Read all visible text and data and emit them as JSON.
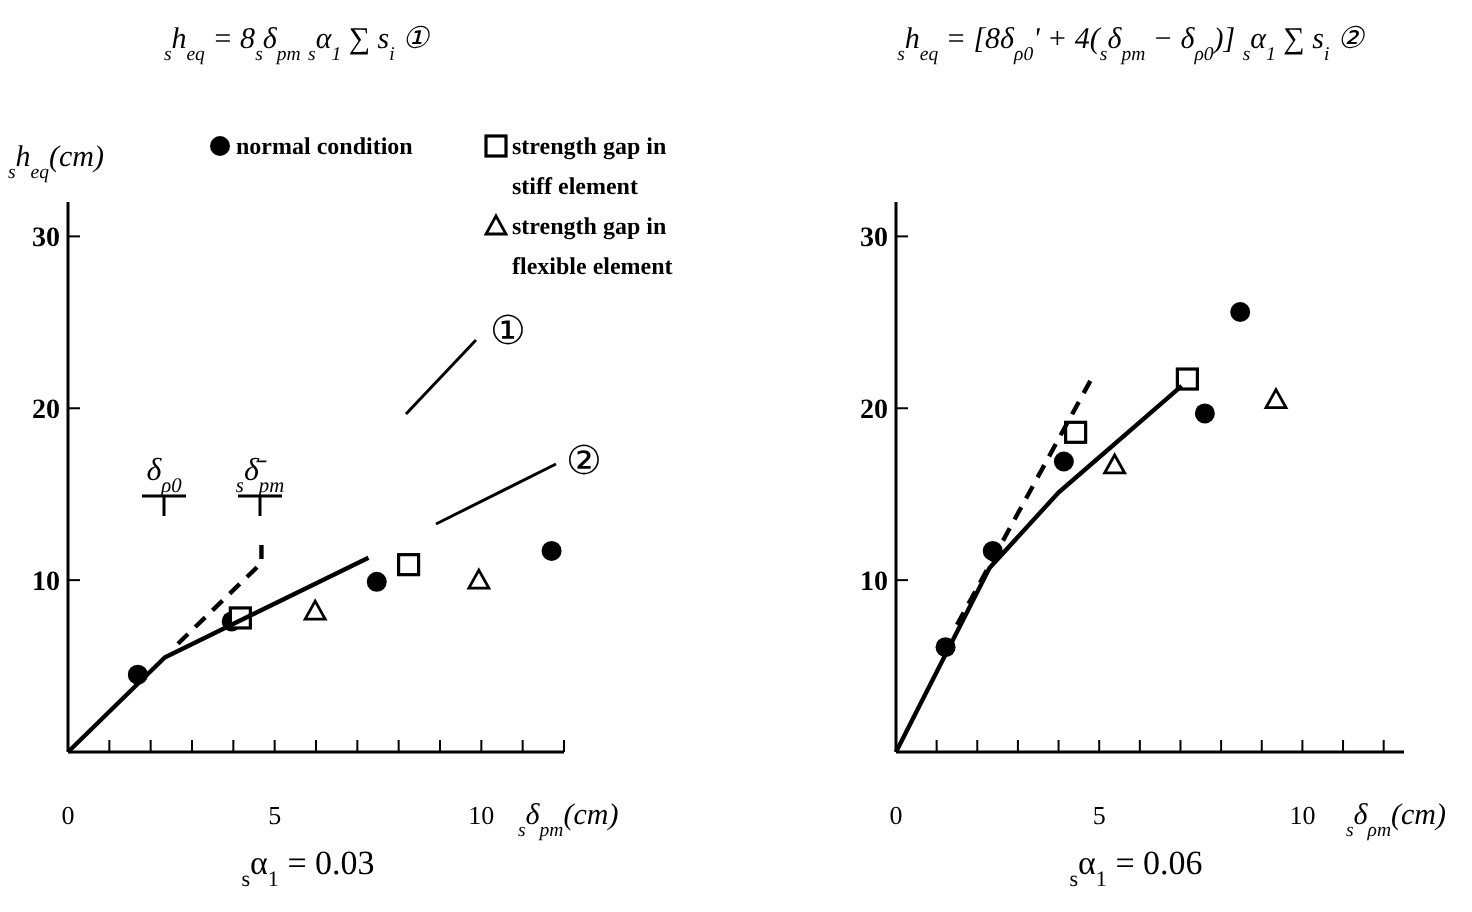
{
  "chart_data": [
    {
      "type": "scatter",
      "title": "$_{s}$h$_{eq}$ = 8$_{s}$δ$_{pm}$ $_{s}$α$_{1}$ ∑ s$_{i}$     ①",
      "ylabel": "$_{s}$h$_{eq}$(cm)",
      "xlabel": "$_{s}$δ$_{pm}$(cm)",
      "xlim": [
        0,
        12
      ],
      "ylim": [
        0,
        32
      ],
      "xticks": [
        0,
        {
          "value": 1,
          "label": null
        },
        {
          "value": 2,
          "label": null
        },
        {
          "value": 3,
          "label": null
        },
        {
          "value": 4,
          "label": null
        },
        5,
        {
          "value": 6,
          "label": null
        },
        {
          "value": 7,
          "label": null
        },
        {
          "value": 8,
          "label": null
        },
        {
          "value": 9,
          "label": null
        },
        10,
        {
          "value": 11,
          "label": null
        },
        {
          "value": 12,
          "label": null
        }
      ],
      "yticks": [
        10,
        20,
        30
      ],
      "grid": false,
      "legend": "top right",
      "annotations": [
        "$_{s}$α$_{1}$ = 0.03",
        "δ$_{ρ0}$",
        "$_{s}$δ̄$_{pm}$",
        "①",
        "②"
      ],
      "series": [
        {
          "name": "normal condition",
          "marker": "circle",
          "color": "#000000",
          "x": [
            1.69,
            3.96,
            7.47,
            11.7
          ],
          "values": [
            4.5,
            7.6,
            9.9,
            11.7
          ]
        },
        {
          "name": "strength gap in stiff element",
          "marker": "square",
          "color": "#000000",
          "x": [
            4.17,
            8.24
          ],
          "values": [
            7.8,
            10.9
          ]
        },
        {
          "name": "strength gap in flexible element",
          "marker": "triangle",
          "color": "#000000",
          "x": [
            5.98,
            9.94
          ],
          "values": [
            8.2,
            10.0
          ]
        },
        {
          "type": "line",
          "marker": "none",
          "line_style": "solid",
          "color": "#000000",
          "x": [
            0,
            2.34,
            7.27
          ],
          "values": [
            0,
            5.5,
            11.3
          ]
        },
        {
          "type": "line",
          "marker": "none",
          "line_style": "dashed",
          "color": "#000000",
          "x": [
            2.66,
            4.68,
            4.68
          ],
          "values": [
            6.3,
            11.0,
            12.3
          ]
        }
      ]
    },
    {
      "type": "scatter",
      "title": "$_{s}$h$_{eq}$ = [8δ$_{ρ0}$' + 4($_{s}$δ$_{pm}$ − δ$_{ρ0}$)] $_{s}$α$_{1}$ ∑ s$_{i}$     ②",
      "xlabel": "$_{s}$δ$_{ρm}$(cm)",
      "xlim": [
        0,
        12.5
      ],
      "ylim": [
        0,
        32
      ],
      "xticks": [
        0,
        {
          "value": 1,
          "label": null
        },
        {
          "value": 2,
          "label": null
        },
        {
          "value": 3,
          "label": null
        },
        {
          "value": 4,
          "label": null
        },
        5,
        {
          "value": 6,
          "label": null
        },
        {
          "value": 7,
          "label": null
        },
        {
          "value": 8,
          "label": null
        },
        {
          "value": 9,
          "label": null
        },
        10,
        {
          "value": 11,
          "label": null
        },
        {
          "value": 12,
          "label": null
        }
      ],
      "yticks": [
        10,
        20,
        30
      ],
      "grid": false,
      "annotations": [
        "$_{s}$α$_{1}$ = 0.06"
      ],
      "series": [
        {
          "marker": "circle",
          "color": "#000000",
          "x": [
            1.22,
            2.38,
            4.13,
            7.6,
            8.47
          ],
          "values": [
            6.1,
            11.7,
            16.9,
            19.7,
            25.6
          ]
        },
        {
          "marker": "square",
          "color": "#000000",
          "x": [
            4.42,
            7.17
          ],
          "values": [
            18.6,
            21.7
          ]
        },
        {
          "marker": "triangle",
          "color": "#000000",
          "x": [
            5.38,
            9.35
          ],
          "values": [
            16.7,
            20.5
          ]
        },
        {
          "type": "line",
          "marker": "none",
          "line_style": "solid",
          "color": "#000000",
          "x": [
            0,
            2.3,
            4.0,
            7.03
          ],
          "values": [
            0,
            10.7,
            15.1,
            21.3
          ]
        },
        {
          "type": "line",
          "marker": "none",
          "line_style": "dashed",
          "color": "#000000",
          "x": [
            1.5,
            4.83
          ],
          "values": [
            7.4,
            21.8
          ]
        }
      ]
    }
  ]
}
